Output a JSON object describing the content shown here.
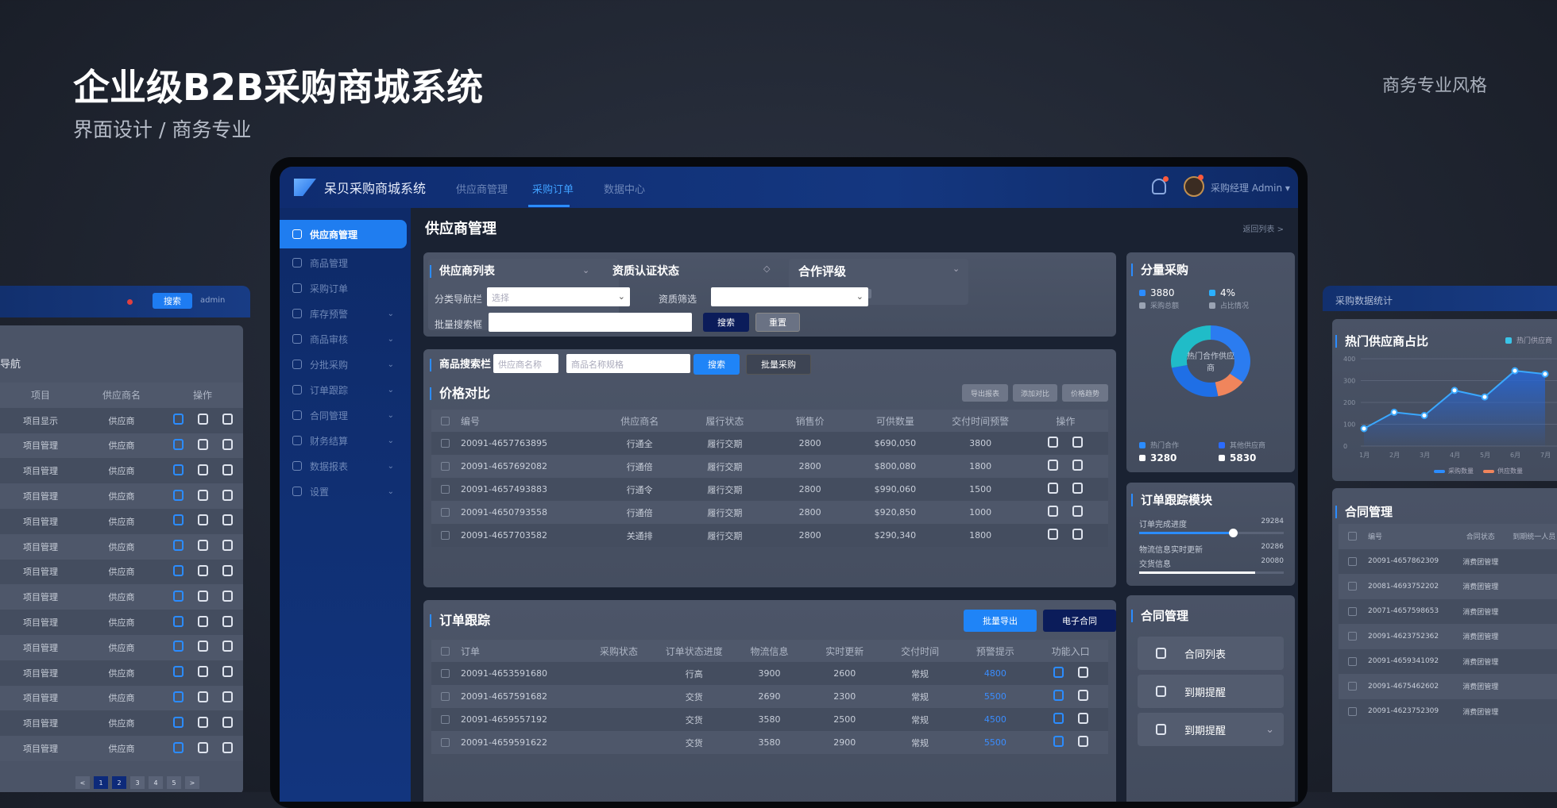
{
  "hero": {
    "title": "企业级B2B采购商城系统",
    "subtitle": "界面设计 / 商务专业",
    "tag": "商务专业风格"
  },
  "app": {
    "brand": "呆贝采购商城系统",
    "nav": [
      "供应商管理",
      "采购订单",
      "数据中心"
    ],
    "active_nav": 1,
    "user": "采购经理 Admin"
  },
  "sidebar": {
    "items": [
      "供应商管理",
      "商品管理",
      "采购订单",
      "库存预警",
      "商品审核",
      "分批采购",
      "订单跟踪",
      "合同管理",
      "财务结算",
      "数据报表",
      "设置"
    ],
    "active": 0
  },
  "page": {
    "title": "供应商管理",
    "breadcrumb": "返回列表 >"
  },
  "filter": {
    "list_title": "供应商列表",
    "cert_title": "资质认证状态",
    "rating_title": "合作评级",
    "category_label": "分类导航栏",
    "category_placeholder": "选择",
    "qual_label": "资质筛选",
    "batch_label": "批量搜索框",
    "search": "搜索",
    "reset": "重置"
  },
  "product": {
    "search_label": "商品搜索栏",
    "ph_supplier": "供应商名称",
    "ph_product": "商品名称规格",
    "search": "搜索",
    "batch": "批量采购",
    "compare_title": "价格对比",
    "actions": [
      "导出报表",
      "添加对比",
      "价格趋势"
    ],
    "columns": [
      "编号",
      "供应商名",
      "履行状态",
      "销售价",
      "可供数量",
      "交付时间预警",
      "操作"
    ],
    "rows": [
      [
        "20091-4657763895",
        "行通全",
        "履行交期",
        "2800",
        "$690,050",
        "3800"
      ],
      [
        "20091-4657692082",
        "行通倍",
        "履行交期",
        "2800",
        "$800,080",
        "1800"
      ],
      [
        "20091-4657493883",
        "行通令",
        "履行交期",
        "2800",
        "$990,060",
        "1500"
      ],
      [
        "20091-4650793558",
        "行通倍",
        "履行交期",
        "2800",
        "$920,850",
        "1000"
      ],
      [
        "20091-4657703582",
        "关通排",
        "履行交期",
        "2800",
        "$290,340",
        "1800"
      ]
    ]
  },
  "orders": {
    "title": "订单跟踪",
    "export": "批量导出",
    "contract": "电子合同",
    "columns": [
      "订单",
      "采购状态",
      "订单状态进度",
      "物流信息",
      "实时更新",
      "交付时间",
      "预警提示",
      "功能入口"
    ],
    "rows": [
      [
        "20091-4653591680",
        "行高",
        "3900",
        "2600",
        "常规",
        "4800"
      ],
      [
        "20091-4657591682",
        "交货",
        "2690",
        "2300",
        "常规",
        "5500"
      ],
      [
        "20091-4659557192",
        "交货",
        "3580",
        "2500",
        "常规",
        "4500"
      ],
      [
        "20091-4659591622",
        "交货",
        "3580",
        "2900",
        "常规",
        "5500"
      ]
    ]
  },
  "purchase": {
    "title": "分量采购",
    "stat1": "3880",
    "stat2": "4%",
    "stat1_label": "采购总额",
    "stat2_label": "占比情况",
    "center": "热门合作供应商",
    "legend1": "热门合作",
    "legend2": "其他供应商",
    "value1": "3280",
    "value2": "5830",
    "slices": [
      {
        "value": 35,
        "color": "#2b7cf0"
      },
      {
        "value": 12,
        "color": "#f0855c"
      },
      {
        "value": 25,
        "color": "#1f6fe6"
      },
      {
        "value": 28,
        "color": "#20bcc8"
      }
    ]
  },
  "tracking": {
    "title": "订单跟踪模块",
    "progress_label": "订单完成进度",
    "progress_value": "29284",
    "progress": 0.65,
    "logistics_label": "物流信息实时更新",
    "logistics_value": "20286",
    "delivery_label": "交货信息",
    "delivery_value": "20080",
    "delivery_progress": 0.8
  },
  "contracts": {
    "title": "合同管理",
    "items": [
      "合同列表",
      "到期提醒",
      "到期提醒"
    ]
  },
  "left_panel": {
    "button": "搜索",
    "user": "admin",
    "title": "导航",
    "columns": [
      "项目",
      "供应商名",
      "操作"
    ],
    "rows": [
      [
        "项目显示",
        "供应商"
      ],
      [
        "项目管理",
        "供应商"
      ],
      [
        "项目管理",
        "供应商"
      ],
      [
        "项目管理",
        "供应商"
      ],
      [
        "项目管理",
        "供应商"
      ],
      [
        "项目管理",
        "供应商"
      ],
      [
        "项目管理",
        "供应商"
      ],
      [
        "项目管理",
        "供应商"
      ],
      [
        "项目管理",
        "供应商"
      ],
      [
        "项目管理",
        "供应商"
      ],
      [
        "项目管理",
        "供应商"
      ],
      [
        "项目管理",
        "供应商"
      ],
      [
        "项目管理",
        "供应商"
      ],
      [
        "项目管理",
        "供应商"
      ]
    ],
    "pages": [
      "<",
      "1",
      "2",
      "3",
      "4",
      "5",
      ">"
    ]
  },
  "right_panel": {
    "header": "采购数据统计",
    "contract_title": "合同管理",
    "contract_columns": [
      "编号",
      "合同状态",
      "到期统一人员"
    ],
    "contract_rows": [
      [
        "20091-4657862309",
        "消费团管理"
      ],
      [
        "20081-4693752202",
        "消费团管理"
      ],
      [
        "20071-4657598653",
        "消费团管理"
      ],
      [
        "20091-4623752362",
        "消费团管理"
      ],
      [
        "20091-4659341092",
        "消费团管理"
      ],
      [
        "20091-4675462602",
        "消费团管理"
      ],
      [
        "20091-4623752309",
        "消费团管理"
      ]
    ]
  },
  "chart_data": {
    "type": "area",
    "title": "热门供应商占比",
    "legend": [
      "热门供应商"
    ],
    "bottom_legend": [
      "采购数量",
      "供应数量"
    ],
    "categories": [
      "1月",
      "2月",
      "3月",
      "4月",
      "5月",
      "6月",
      "7月"
    ],
    "values": [
      80,
      155,
      140,
      255,
      225,
      345,
      330
    ],
    "ylim": [
      0,
      400
    ],
    "yticks": [
      0,
      100,
      200,
      300,
      400
    ],
    "grid": true,
    "colors": [
      "#3aa8ff",
      "#f0855c"
    ]
  }
}
